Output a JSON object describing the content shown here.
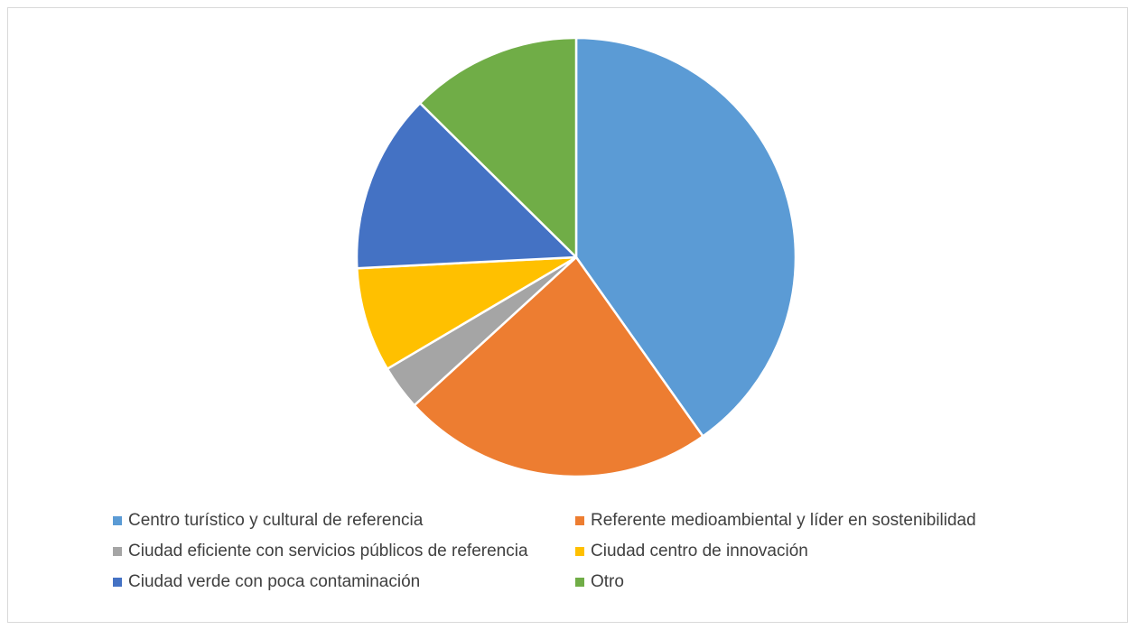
{
  "chart_data": {
    "type": "pie",
    "title": "",
    "legend_position": "bottom",
    "slices": [
      {
        "label": "Centro turístico y cultural de referencia",
        "value": 40.2,
        "color": "#5B9BD5"
      },
      {
        "label": "Referente medioambiental y líder en sostenibilidad",
        "value": 23.0,
        "color": "#ED7D31"
      },
      {
        "label": "Ciudad eficiente con servicios públicos de referencia",
        "value": 3.3,
        "color": "#A5A5A5"
      },
      {
        "label": "Ciudad centro de innovación",
        "value": 7.7,
        "color": "#FFC000"
      },
      {
        "label": "Ciudad verde con poca contaminación",
        "value": 13.2,
        "color": "#4472C4"
      },
      {
        "label": "Otro",
        "value": 12.6,
        "color": "#70AD47"
      }
    ]
  }
}
